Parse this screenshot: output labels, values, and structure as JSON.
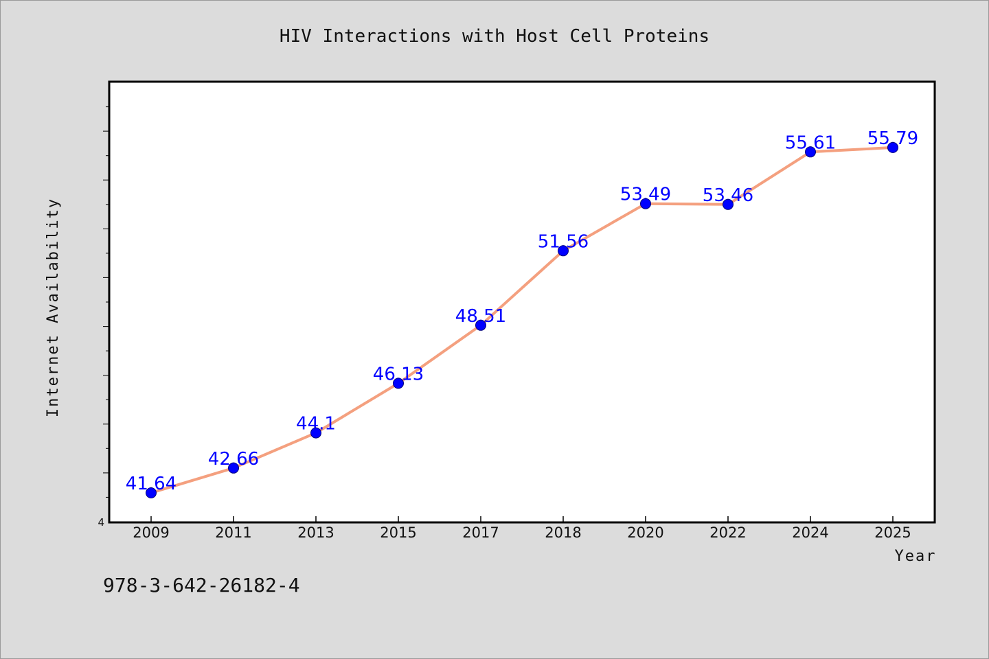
{
  "chart_data": {
    "type": "line",
    "title": "HIV Interactions with Host Cell Proteins",
    "xlabel": "Year",
    "ylabel": "Internet Availability",
    "categories": [
      "2009",
      "2011",
      "2013",
      "2015",
      "2017",
      "2018",
      "2020",
      "2022",
      "2024",
      "2025"
    ],
    "series": [
      {
        "values": [
          41.64,
          42.66,
          44.1,
          46.13,
          48.51,
          51.56,
          53.49,
          53.46,
          55.61,
          55.79
        ],
        "labels": [
          "41.64",
          "42.66",
          "44.1",
          "46.13",
          "48.51",
          "51.56",
          "53.49",
          "53.46",
          "55.61",
          "55.79"
        ]
      }
    ],
    "y_visible_tick_label": "4",
    "ylim": [
      40.46,
      58.46
    ],
    "grid": false,
    "line_color": "#f4a07f",
    "marker_color": "#0000ff",
    "label_color": "#0000ff"
  },
  "caption": "978-3-642-26182-4"
}
